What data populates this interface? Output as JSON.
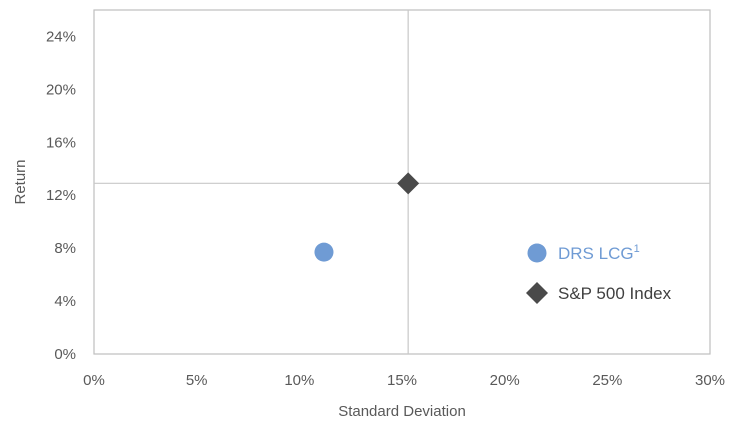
{
  "chart_data": {
    "type": "scatter",
    "title": "",
    "xlabel": "Standard Deviation",
    "ylabel": "Return",
    "xlim": [
      0,
      30
    ],
    "ylim": [
      0,
      26
    ],
    "x_ticks": [
      0,
      5,
      10,
      15,
      20,
      25,
      30
    ],
    "x_tick_labels": [
      "0%",
      "5%",
      "10%",
      "15%",
      "20%",
      "25%",
      "30%"
    ],
    "y_ticks": [
      0,
      4,
      8,
      12,
      16,
      20,
      24
    ],
    "y_tick_labels": [
      "0%",
      "4%",
      "8%",
      "12%",
      "16%",
      "20%",
      "24%"
    ],
    "crosshair": {
      "x": 15.3,
      "y": 12.9
    },
    "grid": false,
    "legend_position": "right",
    "series": [
      {
        "name": "DRS LCG",
        "superscript": "1",
        "marker": "circle",
        "color": "#6f9bd4",
        "points": [
          {
            "x": 11.2,
            "y": 7.7
          }
        ]
      },
      {
        "name": "S&P 500 Index",
        "superscript": "",
        "marker": "diamond",
        "color": "#4a4a4a",
        "points": [
          {
            "x": 15.3,
            "y": 12.9
          }
        ]
      }
    ]
  }
}
